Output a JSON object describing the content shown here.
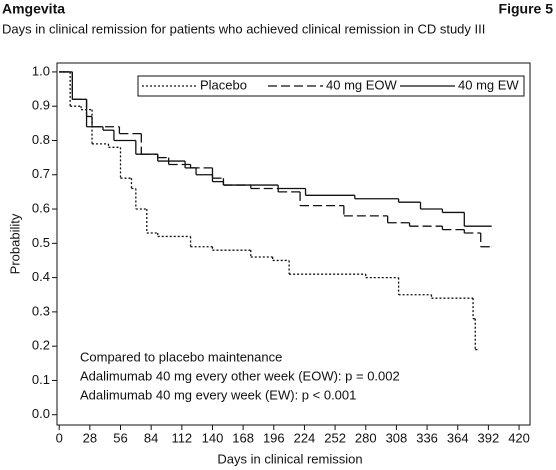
{
  "header": {
    "left": "Amgevita",
    "right": "Figure 5"
  },
  "chart_data": {
    "type": "step",
    "title": "Days in clinical remission for patients who achieved clinical remission in CD study III",
    "x_label": "Days in clinical remission",
    "y_label": "Probability",
    "xlim": [
      -2,
      430
    ],
    "ylim": [
      -0.03,
      1.026
    ],
    "xticks": [
      0,
      28,
      56,
      84,
      112,
      140,
      168,
      196,
      224,
      252,
      280,
      308,
      336,
      364,
      392,
      420
    ],
    "yticks": [
      {
        "value": 0.0,
        "label": "0.0"
      },
      0.1,
      0.2,
      0.3,
      0.4,
      0.5,
      0.6,
      0.7,
      0.8,
      0.9,
      {
        "value": 1.0,
        "label": "1.0"
      }
    ],
    "annotations": [
      "Compared to placebo maintenance",
      "Adalimumab 40 mg every other week (EOW): p = 0.002",
      "Adalimumab 40 mg every week (EW): p < 0.001"
    ],
    "series": [
      {
        "name": "Placebo",
        "color": "#111111",
        "dash": "2,2",
        "x": [
          0,
          10,
          20,
          30,
          45,
          56,
          66,
          70,
          80,
          90,
          120,
          140,
          175,
          195,
          210,
          280,
          310,
          340,
          378,
          380,
          382
        ],
        "values": [
          1.0,
          0.9,
          0.89,
          0.79,
          0.78,
          0.69,
          0.66,
          0.6,
          0.53,
          0.52,
          0.49,
          0.48,
          0.46,
          0.45,
          0.41,
          0.4,
          0.35,
          0.34,
          0.28,
          0.19,
          0.19
        ]
      },
      {
        "name": "40 mg EOW",
        "color": "#111111",
        "dash": "9,4",
        "x": [
          0,
          12,
          25,
          30,
          55,
          75,
          90,
          100,
          120,
          140,
          150,
          175,
          200,
          220,
          260,
          300,
          320,
          350,
          370,
          385,
          395
        ],
        "values": [
          1.0,
          0.92,
          0.87,
          0.84,
          0.82,
          0.76,
          0.75,
          0.73,
          0.72,
          0.69,
          0.67,
          0.66,
          0.65,
          0.61,
          0.58,
          0.56,
          0.55,
          0.54,
          0.53,
          0.49,
          0.49
        ]
      },
      {
        "name": "40 mg EW",
        "color": "#111111",
        "dash": "none",
        "x": [
          0,
          12,
          25,
          40,
          50,
          70,
          90,
          115,
          125,
          140,
          150,
          200,
          225,
          270,
          310,
          330,
          350,
          370,
          395
        ],
        "values": [
          1.0,
          0.92,
          0.84,
          0.83,
          0.8,
          0.76,
          0.74,
          0.72,
          0.7,
          0.68,
          0.67,
          0.66,
          0.64,
          0.63,
          0.62,
          0.6,
          0.59,
          0.55,
          0.55
        ]
      }
    ]
  }
}
